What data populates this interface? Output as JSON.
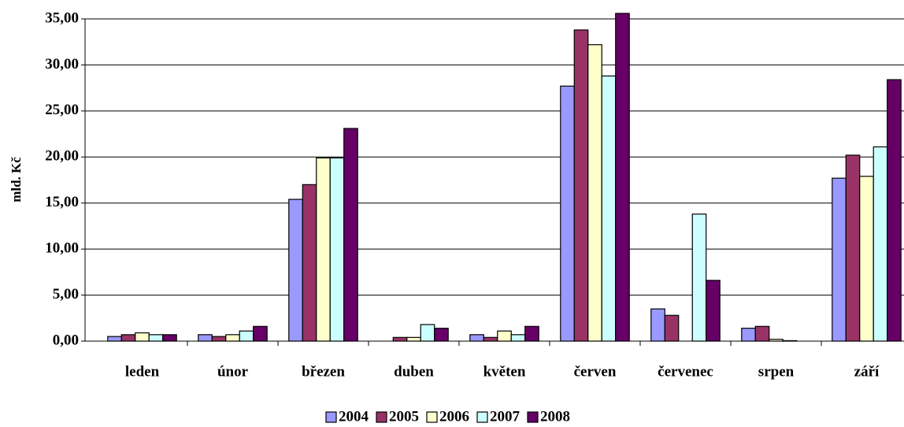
{
  "chart_data": {
    "type": "bar",
    "y_label": "mld. Kč",
    "categories": [
      "leden",
      "únor",
      "březen",
      "duben",
      "květen",
      "červen",
      "červenec",
      "srpen",
      "září"
    ],
    "series": [
      {
        "name": "2004",
        "color": "#9999ff",
        "values": [
          0.5,
          0.7,
          15.4,
          0,
          0.7,
          27.7,
          3.5,
          1.4,
          17.7
        ]
      },
      {
        "name": "2005",
        "color": "#993366",
        "values": [
          0.7,
          0.5,
          17.0,
          0.4,
          0.4,
          33.8,
          2.8,
          1.6,
          20.2
        ]
      },
      {
        "name": "2006",
        "color": "#ffffcc",
        "values": [
          0.9,
          0.7,
          19.9,
          0.4,
          1.1,
          32.2,
          0,
          0.2,
          17.9
        ]
      },
      {
        "name": "2007",
        "color": "#ccffff",
        "values": [
          0.7,
          1.1,
          19.9,
          1.8,
          0.7,
          28.8,
          13.8,
          0.05,
          21.1
        ]
      },
      {
        "name": "2008",
        "color": "#660066",
        "values": [
          0.7,
          1.6,
          23.1,
          1.4,
          1.6,
          35.6,
          6.6,
          0,
          28.4
        ]
      }
    ],
    "ylim": [
      0,
      35
    ],
    "yticks": [
      {
        "value": 0,
        "label": "0,00"
      },
      {
        "value": 5,
        "label": "5,00"
      },
      {
        "value": 10,
        "label": "10,00"
      },
      {
        "value": 15,
        "label": "15,00"
      },
      {
        "value": 20,
        "label": "20,00"
      },
      {
        "value": 25,
        "label": "25,00"
      },
      {
        "value": 30,
        "label": "30,00"
      },
      {
        "value": 35,
        "label": "35,00"
      }
    ],
    "grid": true,
    "legend": "bottom"
  }
}
